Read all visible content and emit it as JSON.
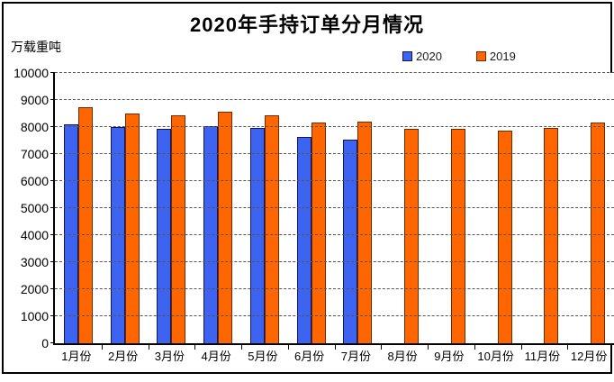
{
  "title": "2020年手持订单分月情况",
  "unit_label": "万载重吨",
  "legend": {
    "items": [
      {
        "label": "2020",
        "color": "#3D64F0",
        "border": "#14145a"
      },
      {
        "label": "2019",
        "color": "#FF6600",
        "border": "#6b2a00"
      }
    ]
  },
  "chart_data": {
    "type": "bar",
    "title": "2020年手持订单分月情况",
    "ylabel": "万载重吨",
    "xlabel": "",
    "categories": [
      "1月份",
      "2月份",
      "3月份",
      "4月份",
      "5月份",
      "6月份",
      "7月份",
      "8月份",
      "9月份",
      "10月份",
      "11月份",
      "12月份"
    ],
    "series": [
      {
        "name": "2020",
        "color": "#3D64F0",
        "border": "#14145a",
        "values": [
          8100,
          8010,
          7940,
          8030,
          7970,
          7650,
          7540,
          null,
          null,
          null,
          null,
          null
        ]
      },
      {
        "name": "2019",
        "color": "#FF6600",
        "border": "#6b2a00",
        "values": [
          8740,
          8500,
          8420,
          8560,
          8440,
          8180,
          8210,
          7920,
          7940,
          7880,
          7980,
          8170
        ]
      }
    ],
    "ylim": [
      0,
      10000
    ],
    "ytick_step": 1000,
    "yticks": [
      0,
      1000,
      2000,
      3000,
      4000,
      5000,
      6000,
      7000,
      8000,
      9000,
      10000
    ],
    "grid": "horizontal-dashed",
    "legend_position": "top-right"
  }
}
